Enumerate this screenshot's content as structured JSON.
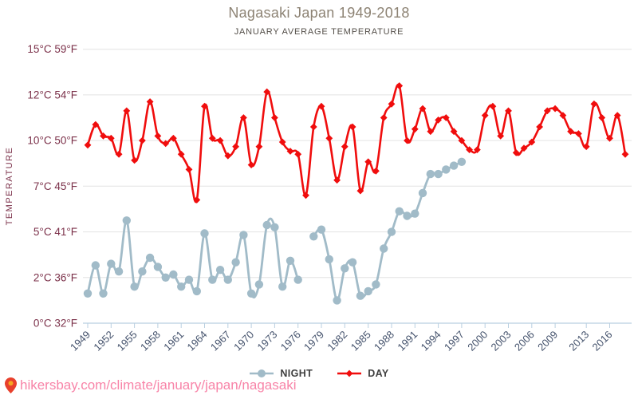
{
  "header": {
    "title": "Nagasaki Japan 1949-2018",
    "subtitle": "JANUARY AVERAGE TEMPERATURE"
  },
  "y_axis": {
    "label": "TEMPERATURE",
    "ticks": [
      {
        "value": 15,
        "label": "15°C 59°F"
      },
      {
        "value": 12,
        "label": "12°C 54°F"
      },
      {
        "value": 10,
        "label": "10°C 50°F"
      },
      {
        "value": 7,
        "label": "7°C 45°F"
      },
      {
        "value": 5,
        "label": "5°C 41°F"
      },
      {
        "value": 2,
        "label": "2°C 36°F"
      },
      {
        "value": 0,
        "label": "0°C 32°F"
      }
    ]
  },
  "x_axis": {
    "tick_years": [
      1949,
      1952,
      1955,
      1958,
      1961,
      1964,
      1967,
      1970,
      1973,
      1976,
      1979,
      1982,
      1985,
      1988,
      1991,
      1994,
      1997,
      2000,
      2003,
      2006,
      2009,
      2013,
      2016
    ]
  },
  "legend": {
    "night_label": "NIGHT",
    "day_label": "DAY"
  },
  "footer": {
    "url": "hikersbay.com/climate/january/japan/nagasaki"
  },
  "colors": {
    "day": "#f00d0d",
    "night": "#a1bbc8",
    "grid": "#e3e3e3",
    "axis": "#b9cfe0",
    "y_tick_text": "#7b3049",
    "x_tick_text": "#45536d",
    "title": "#8d8374",
    "subtitle": "#55504a",
    "legend_text": "#3f3f3f",
    "url": "#f884a8",
    "pin_outer": "#e8402c",
    "pin_inner": "#f6a723"
  },
  "chart_data": {
    "type": "line",
    "title": "Nagasaki Japan 1949-2018",
    "subtitle": "JANUARY AVERAGE TEMPERATURE",
    "ylabel": "TEMPERATURE",
    "y_unit": "°C",
    "y_tick_values": [
      0,
      2,
      5,
      7,
      10,
      12,
      15
    ],
    "ylim": [
      0,
      15
    ],
    "grid": "horizontal",
    "legend_position": "bottom",
    "x": [
      1949,
      1950,
      1951,
      1952,
      1953,
      1954,
      1955,
      1956,
      1957,
      1958,
      1959,
      1960,
      1961,
      1962,
      1963,
      1964,
      1965,
      1966,
      1967,
      1968,
      1969,
      1970,
      1971,
      1972,
      1973,
      1974,
      1975,
      1976,
      1977,
      1978,
      1979,
      1980,
      1981,
      1982,
      1983,
      1984,
      1985,
      1986,
      1987,
      1988,
      1989,
      1990,
      1991,
      1992,
      1993,
      1994,
      1995,
      1996,
      1997,
      1998,
      1999,
      2000,
      2001,
      2002,
      2003,
      2004,
      2005,
      2006,
      2007,
      2008,
      2009,
      2010,
      2011,
      2012,
      2013,
      2014,
      2015,
      2016,
      2017,
      2018
    ],
    "series": [
      {
        "name": "NIGHT",
        "marker": "circle",
        "values": [
          1.3,
          2.8,
          1.3,
          2.9,
          2.4,
          5.5,
          1.6,
          2.4,
          3.3,
          2.7,
          2.0,
          2.2,
          1.6,
          1.9,
          1.4,
          4.9,
          1.9,
          2.5,
          1.9,
          3.0,
          4.8,
          1.3,
          1.7,
          5.3,
          5.2,
          1.6,
          3.1,
          1.9,
          null,
          4.7,
          5.1,
          3.2,
          1.0,
          2.6,
          3.0,
          1.2,
          1.4,
          1.7,
          3.9,
          5.0,
          5.9,
          5.7,
          5.8,
          6.7,
          7.8,
          7.8,
          8.1,
          8.35,
          8.6,
          null,
          null,
          null,
          null,
          null,
          null,
          null,
          null,
          null,
          null,
          null,
          null,
          null,
          null,
          null,
          null,
          null,
          null,
          null,
          null,
          null
        ]
      },
      {
        "name": "DAY",
        "marker": "diamond",
        "values": [
          9.7,
          10.7,
          10.2,
          10.1,
          9.1,
          11.3,
          8.7,
          10.0,
          11.7,
          10.2,
          9.8,
          10.1,
          9.1,
          8.1,
          6.4,
          11.5,
          10.1,
          10.0,
          9.0,
          9.6,
          11.0,
          8.4,
          9.6,
          12.2,
          11.0,
          9.9,
          9.3,
          9.1,
          6.6,
          10.6,
          11.5,
          10.1,
          7.4,
          9.6,
          10.6,
          6.8,
          8.6,
          8.0,
          11.0,
          11.6,
          12.6,
          10.0,
          10.5,
          11.4,
          10.4,
          10.9,
          11.0,
          10.4,
          10.0,
          9.4,
          9.4,
          11.1,
          11.5,
          10.2,
          11.3,
          9.2,
          9.5,
          9.9,
          10.6,
          11.3,
          11.4,
          11.1,
          10.4,
          10.3,
          9.6,
          11.6,
          11.0,
          10.1,
          11.1,
          9.1
        ]
      }
    ]
  }
}
